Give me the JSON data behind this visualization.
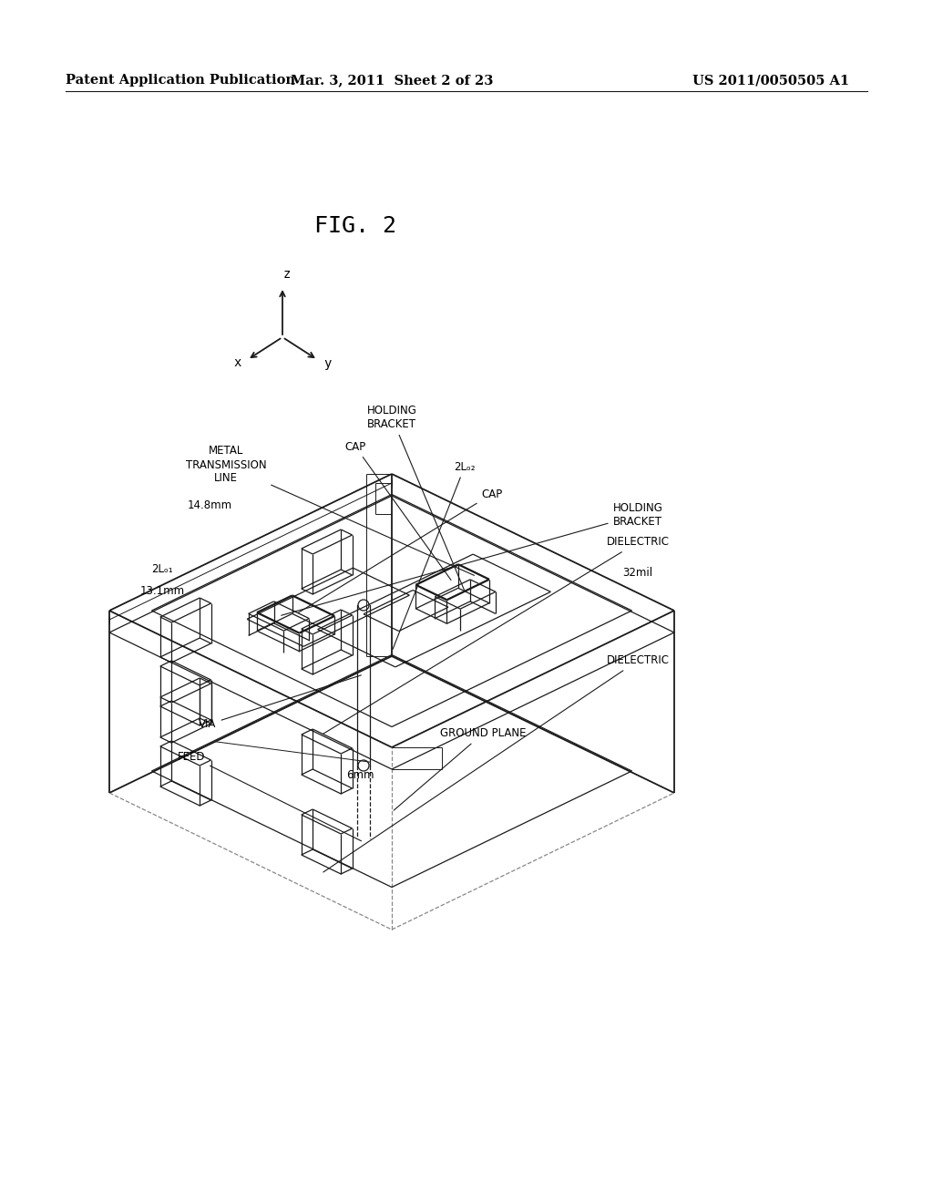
{
  "background_color": "#ffffff",
  "page_header": {
    "left": "Patent Application Publication",
    "center": "Mar. 3, 2011  Sheet 2 of 23",
    "right": "US 2011/0050505 A1",
    "fontsize": 10.5
  },
  "fig_label": "FIG. 2",
  "fig_label_fontsize": 18,
  "text_color": "#000000",
  "line_color": "#1a1a1a"
}
